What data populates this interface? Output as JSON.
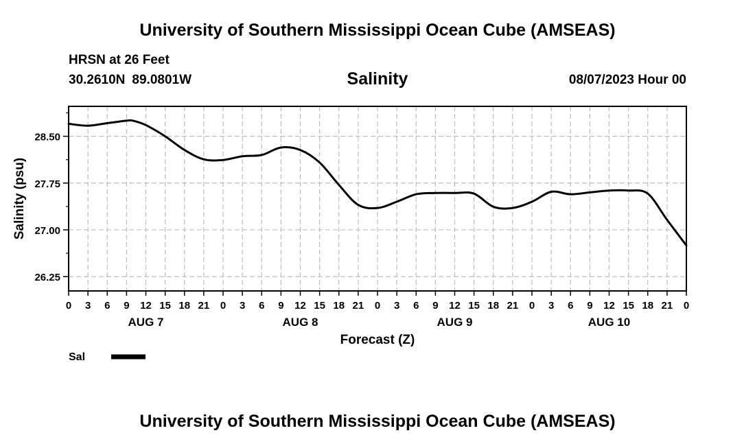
{
  "header": {
    "title": "University of Southern Mississippi Ocean Cube (AMSEAS)",
    "station": "HRSN at 26 Feet",
    "lat": "30.2610N",
    "lon": "89.0801W",
    "variable_title": "Salinity",
    "datetime": "08/07/2023 Hour 00"
  },
  "footer": {
    "title": "University of Southern Mississippi Ocean Cube (AMSEAS)"
  },
  "chart_data": {
    "type": "line",
    "title": "Salinity",
    "xlabel": "Forecast (Z)",
    "ylabel": "Salinity (psu)",
    "xlim": [
      0,
      96
    ],
    "ylim": [
      26.02,
      28.98
    ],
    "grid": true,
    "x_tick_labels": [
      "0",
      "3",
      "6",
      "9",
      "12",
      "15",
      "18",
      "21",
      "0",
      "3",
      "6",
      "9",
      "12",
      "15",
      "18",
      "21",
      "0",
      "3",
      "6",
      "9",
      "12",
      "15",
      "18",
      "21",
      "0",
      "3",
      "6",
      "9",
      "12",
      "15",
      "18",
      "21",
      "0"
    ],
    "y_ticks": [
      26.25,
      27.0,
      27.75,
      28.5
    ],
    "y_tick_labels": [
      "26.25",
      "27.00",
      "27.75",
      "28.50"
    ],
    "day_labels": [
      {
        "label": "AUG 7",
        "hour": 12
      },
      {
        "label": "AUG 8",
        "hour": 36
      },
      {
        "label": "AUG 9",
        "hour": 60
      },
      {
        "label": "AUG 10",
        "hour": 84
      }
    ],
    "legend": {
      "label": "Sal",
      "position": "bottom-left",
      "color": "#000000"
    },
    "series": [
      {
        "name": "Sal",
        "color": "#000000",
        "x": [
          0,
          3,
          6,
          9,
          10,
          12,
          15,
          18,
          21,
          24,
          27,
          30,
          33,
          36,
          39,
          42,
          45,
          48,
          51,
          54,
          57,
          60,
          63,
          66,
          69,
          72,
          75,
          78,
          81,
          84,
          87,
          90,
          93,
          96
        ],
        "values": [
          28.7,
          28.67,
          28.71,
          28.75,
          28.75,
          28.68,
          28.5,
          28.28,
          28.13,
          28.12,
          28.18,
          28.2,
          28.32,
          28.28,
          28.08,
          27.72,
          27.4,
          27.35,
          27.45,
          27.57,
          27.59,
          27.59,
          27.58,
          27.37,
          27.35,
          27.45,
          27.61,
          27.57,
          27.6,
          27.63,
          27.63,
          27.58,
          27.16,
          26.75
        ]
      }
    ]
  }
}
